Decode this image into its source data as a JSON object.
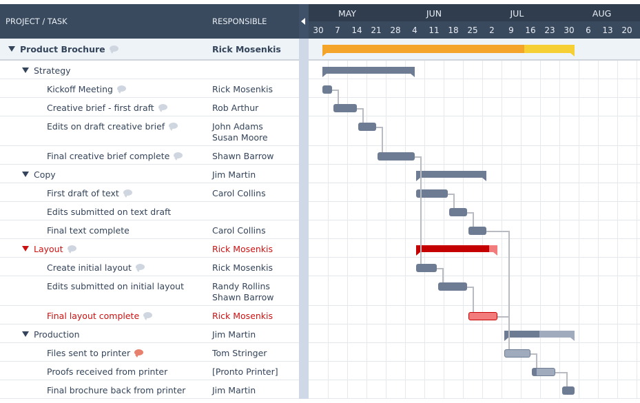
{
  "header": {
    "task_col": "PROJECT / TASK",
    "responsible_col": "RESPONSIBLE"
  },
  "timeline": {
    "months": [
      {
        "label": "MAY",
        "col": 1.5
      },
      {
        "label": "JUN",
        "col": 6
      },
      {
        "label": "JUL",
        "col": 10.3
      },
      {
        "label": "AUG",
        "col": 14.7
      }
    ],
    "weeks": [
      "30",
      "7",
      "14",
      "21",
      "28",
      "4",
      "11",
      "18",
      "25",
      "2",
      "9",
      "16",
      "23",
      "30",
      "6",
      "13",
      "20"
    ],
    "axis_start": "04-30"
  },
  "colors": {
    "task": "#6e7c93",
    "task_light": "#a0abbd",
    "critical": "#c40000",
    "critical_light": "#f27c7c",
    "project": "#f4a428",
    "project_light": "#f6cf35",
    "red_text": "#cc1111"
  },
  "rows": [
    {
      "name": "Product Brochure",
      "level": 0,
      "type": "project",
      "responsible": [
        "Rick Mosenkis"
      ],
      "comment": true,
      "start": "05-05",
      "end": "08-05",
      "progress": 80
    },
    {
      "name": "Strategy",
      "level": 1,
      "type": "summary",
      "responsible": [],
      "start": "05-05",
      "end": "06-08",
      "progress": 100
    },
    {
      "name": "Kickoff Meeting",
      "level": 2,
      "type": "task",
      "responsible": [
        "Rick Mosenkis"
      ],
      "comment": true,
      "start": "05-05",
      "end": "05-09",
      "progress": 100
    },
    {
      "name": "Creative brief - first draft",
      "level": 2,
      "type": "task",
      "responsible": [
        "Rob Arthur"
      ],
      "comment": true,
      "start": "05-09",
      "end": "05-18",
      "progress": 100
    },
    {
      "name": "Edits on draft creative brief",
      "level": 2,
      "type": "task",
      "responsible": [
        "John Adams",
        "Susan Moore"
      ],
      "comment": true,
      "start": "05-18",
      "end": "05-25",
      "progress": 100
    },
    {
      "name": "Final creative brief complete",
      "level": 2,
      "type": "task",
      "responsible": [
        "Shawn Barrow"
      ],
      "comment": true,
      "start": "05-25",
      "end": "06-08",
      "progress": 100
    },
    {
      "name": "Copy",
      "level": 1,
      "type": "summary",
      "responsible": [
        "Jim Martin"
      ],
      "start": "06-08",
      "end": "07-04",
      "progress": 100
    },
    {
      "name": "First draft of text",
      "level": 2,
      "type": "task",
      "responsible": [
        "Carol Collins"
      ],
      "comment": true,
      "start": "06-08",
      "end": "06-20",
      "progress": 100
    },
    {
      "name": "Edits submitted on text draft",
      "level": 2,
      "type": "task",
      "responsible": [],
      "start": "06-20",
      "end": "06-27",
      "progress": 100
    },
    {
      "name": "Final text complete",
      "level": 2,
      "type": "task",
      "responsible": [
        "Carol Collins"
      ],
      "start": "06-27",
      "end": "07-04",
      "progress": 100
    },
    {
      "name": "Layout",
      "level": 1,
      "type": "summary",
      "critical": true,
      "responsible": [
        "Rick Mosenkis"
      ],
      "comment": true,
      "start": "06-08",
      "end": "07-08",
      "progress": 90
    },
    {
      "name": "Create initial layout",
      "level": 2,
      "type": "task",
      "responsible": [
        "Rick Mosenkis"
      ],
      "comment": true,
      "start": "06-08",
      "end": "06-16",
      "progress": 100
    },
    {
      "name": "Edits submitted on initial layout",
      "level": 2,
      "type": "task",
      "responsible": [
        "Randy Rollins",
        "Shawn Barrow"
      ],
      "start": "06-16",
      "end": "06-27",
      "progress": 100
    },
    {
      "name": "Final layout complete",
      "level": 2,
      "type": "task",
      "critical": true,
      "responsible": [
        "Rick Mosenkis"
      ],
      "comment": true,
      "start": "06-27",
      "end": "07-08",
      "progress": 0
    },
    {
      "name": "Production",
      "level": 1,
      "type": "summary",
      "responsible": [
        "Jim Martin"
      ],
      "start": "07-10",
      "end": "08-05",
      "progress": 50
    },
    {
      "name": "Files sent to printer",
      "level": 2,
      "type": "task",
      "responsible": [
        "Tom Stringer"
      ],
      "comment": true,
      "comment_unread": true,
      "start": "07-10",
      "end": "07-20",
      "progress": 0
    },
    {
      "name": "Proofs received from printer",
      "level": 2,
      "type": "task",
      "responsible": [
        "[Pronto Printer]"
      ],
      "start": "07-20",
      "end": "07-29",
      "progress": 18
    },
    {
      "name": "Final brochure back from printer",
      "level": 2,
      "type": "task",
      "responsible": [
        "Jim Martin"
      ],
      "start": "07-31",
      "end": "08-05",
      "progress": 100
    }
  ],
  "dependencies": [
    [
      2,
      3
    ],
    [
      3,
      4
    ],
    [
      4,
      5
    ],
    [
      5,
      7
    ],
    [
      5,
      11
    ],
    [
      7,
      8
    ],
    [
      8,
      9
    ],
    [
      9,
      15
    ],
    [
      11,
      12
    ],
    [
      12,
      13
    ],
    [
      13,
      15
    ],
    [
      15,
      16
    ],
    [
      16,
      17
    ]
  ]
}
